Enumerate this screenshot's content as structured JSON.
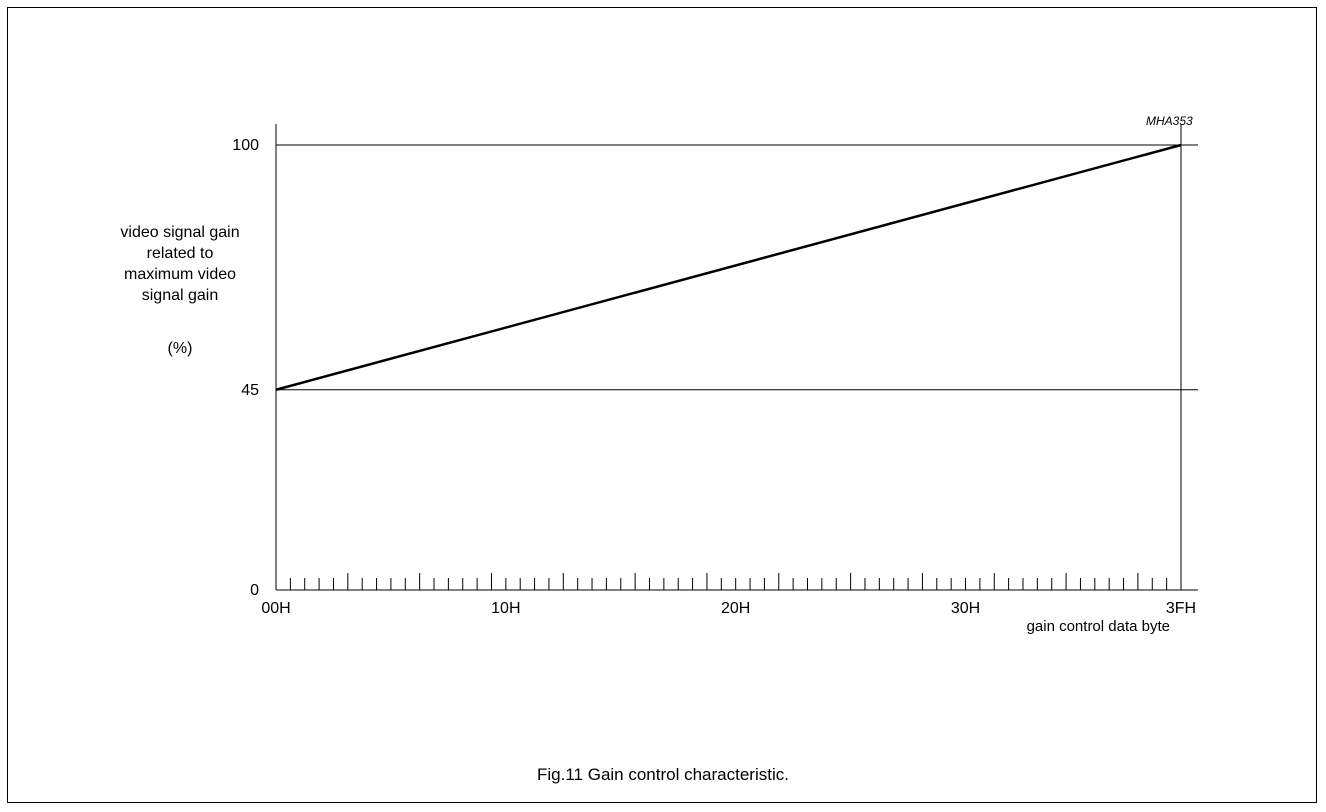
{
  "chart_data": {
    "type": "line",
    "title": "",
    "code": "MHA353",
    "xlabel": "gain control data byte",
    "ylabel_lines": [
      "video signal gain",
      "related to",
      "maximum video",
      "signal gain"
    ],
    "yunit": "(%)",
    "x_ticks": [
      "00H",
      "10H",
      "20H",
      "30H",
      "3FH"
    ],
    "y_ticks": [
      "0",
      "45",
      "100"
    ],
    "xlim": [
      0,
      63
    ],
    "ylim": [
      0,
      100
    ],
    "grid": false,
    "series": [
      {
        "x": [
          0,
          63
        ],
        "y": [
          45,
          100
        ]
      }
    ]
  },
  "caption": "Fig.11  Gain control characteristic."
}
